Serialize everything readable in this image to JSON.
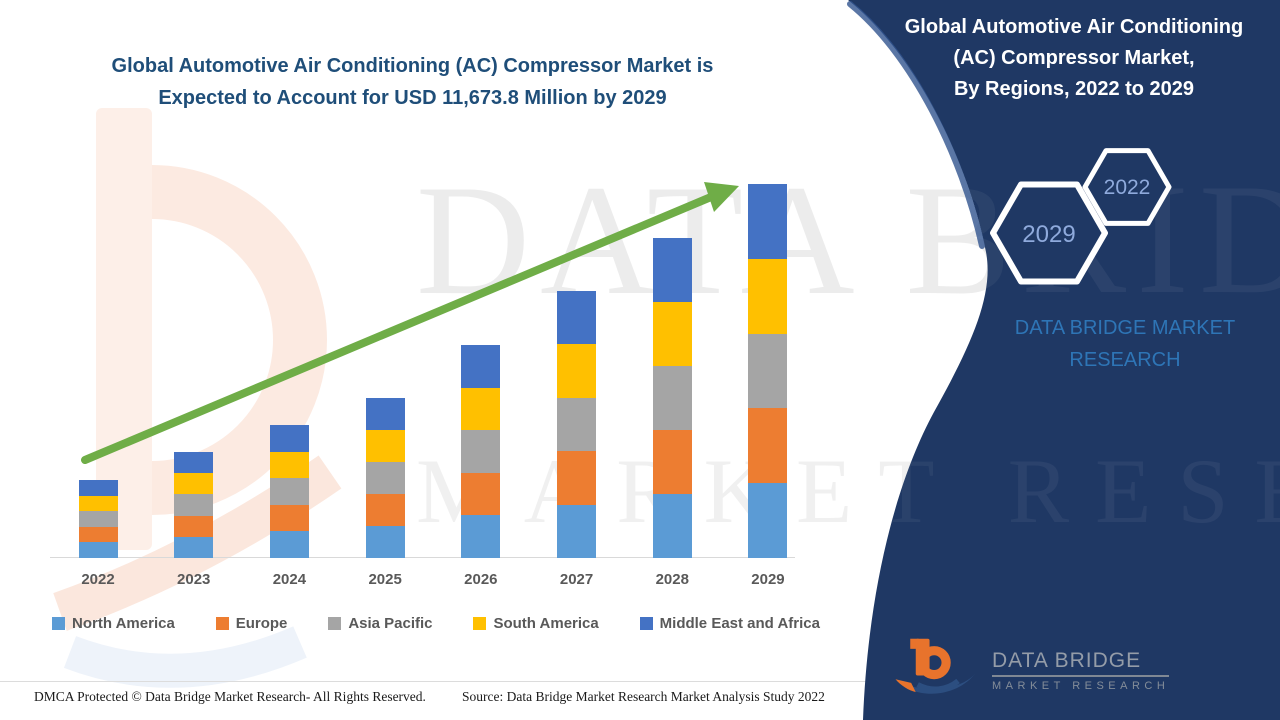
{
  "left_title": {
    "line1": "Global Automotive Air Conditioning (AC) Compressor Market is",
    "line2": "Expected to Account for USD 11,673.8 Million by 2029"
  },
  "chart_data": {
    "type": "bar",
    "stacked": true,
    "title": "Global Automotive Air Conditioning (AC) Compressor Market",
    "unit": "USD Million",
    "categories": [
      "2022",
      "2023",
      "2024",
      "2025",
      "2026",
      "2027",
      "2028",
      "2029"
    ],
    "series": [
      {
        "name": "North America",
        "color": "#5B9BD5",
        "values": [
          487,
          662,
          830,
          999,
          1330,
          1667,
          1998,
          2334.76
        ]
      },
      {
        "name": "Europe",
        "color": "#ED7D31",
        "values": [
          487,
          662,
          830,
          999,
          1330,
          1667,
          1998,
          2334.76
        ]
      },
      {
        "name": "Asia Pacific",
        "color": "#A5A5A5",
        "values": [
          487,
          662,
          830,
          999,
          1330,
          1667,
          1998,
          2334.76
        ]
      },
      {
        "name": "South America",
        "color": "#FFC000",
        "values": [
          487,
          662,
          830,
          999,
          1330,
          1667,
          1998,
          2334.76
        ]
      },
      {
        "name": "Middle East and Africa",
        "color": "#4472C4",
        "values": [
          487,
          662,
          830,
          999,
          1330,
          1667,
          1998,
          2334.76
        ]
      }
    ],
    "totals_estimated": [
      2435,
      3310,
      4150,
      4995,
      6650,
      8335,
      9990,
      11673.8
    ],
    "highlight_total_2029": "11,673.8",
    "xlabel": "",
    "ylabel": "",
    "ylim": [
      0,
      11673.8
    ],
    "grid": false,
    "legend_position": "bottom",
    "trend_arrow": true
  },
  "panel": {
    "title_line1": "Global Automotive Air Conditioning",
    "title_line2": "(AC) Compressor Market,",
    "title_line3": "By Regions, 2022 to 2029",
    "hex_small": "2022",
    "hex_big": "2029",
    "brand": "DATA BRIDGE MARKET RESEARCH",
    "logo_title": "DATA BRIDGE",
    "logo_subtitle": "MARKET RESEARCH"
  },
  "watermark": {
    "line1": "DATA BRIDGE",
    "line2": "MARKET RESEARCH"
  },
  "footer": {
    "left": "DMCA Protected © Data Bridge Market Research- All Rights Reserved.",
    "right": "Source: Data Bridge Market Research Market Analysis Study 2022"
  },
  "colors": {
    "title_blue": "#1F4E79",
    "panel_navy": "#1F3864",
    "brand_blue": "#2E75B6",
    "hex_label_blue": "#8FAADC",
    "arrow_green": "#6FAD47",
    "axis_label_gray": "#595959",
    "baseline_gray": "#D9D9D9",
    "logo_orange": "#E8732C",
    "logo_swoosh_blue": "#2C4E80",
    "logo_text_gray": "#949CA8"
  }
}
